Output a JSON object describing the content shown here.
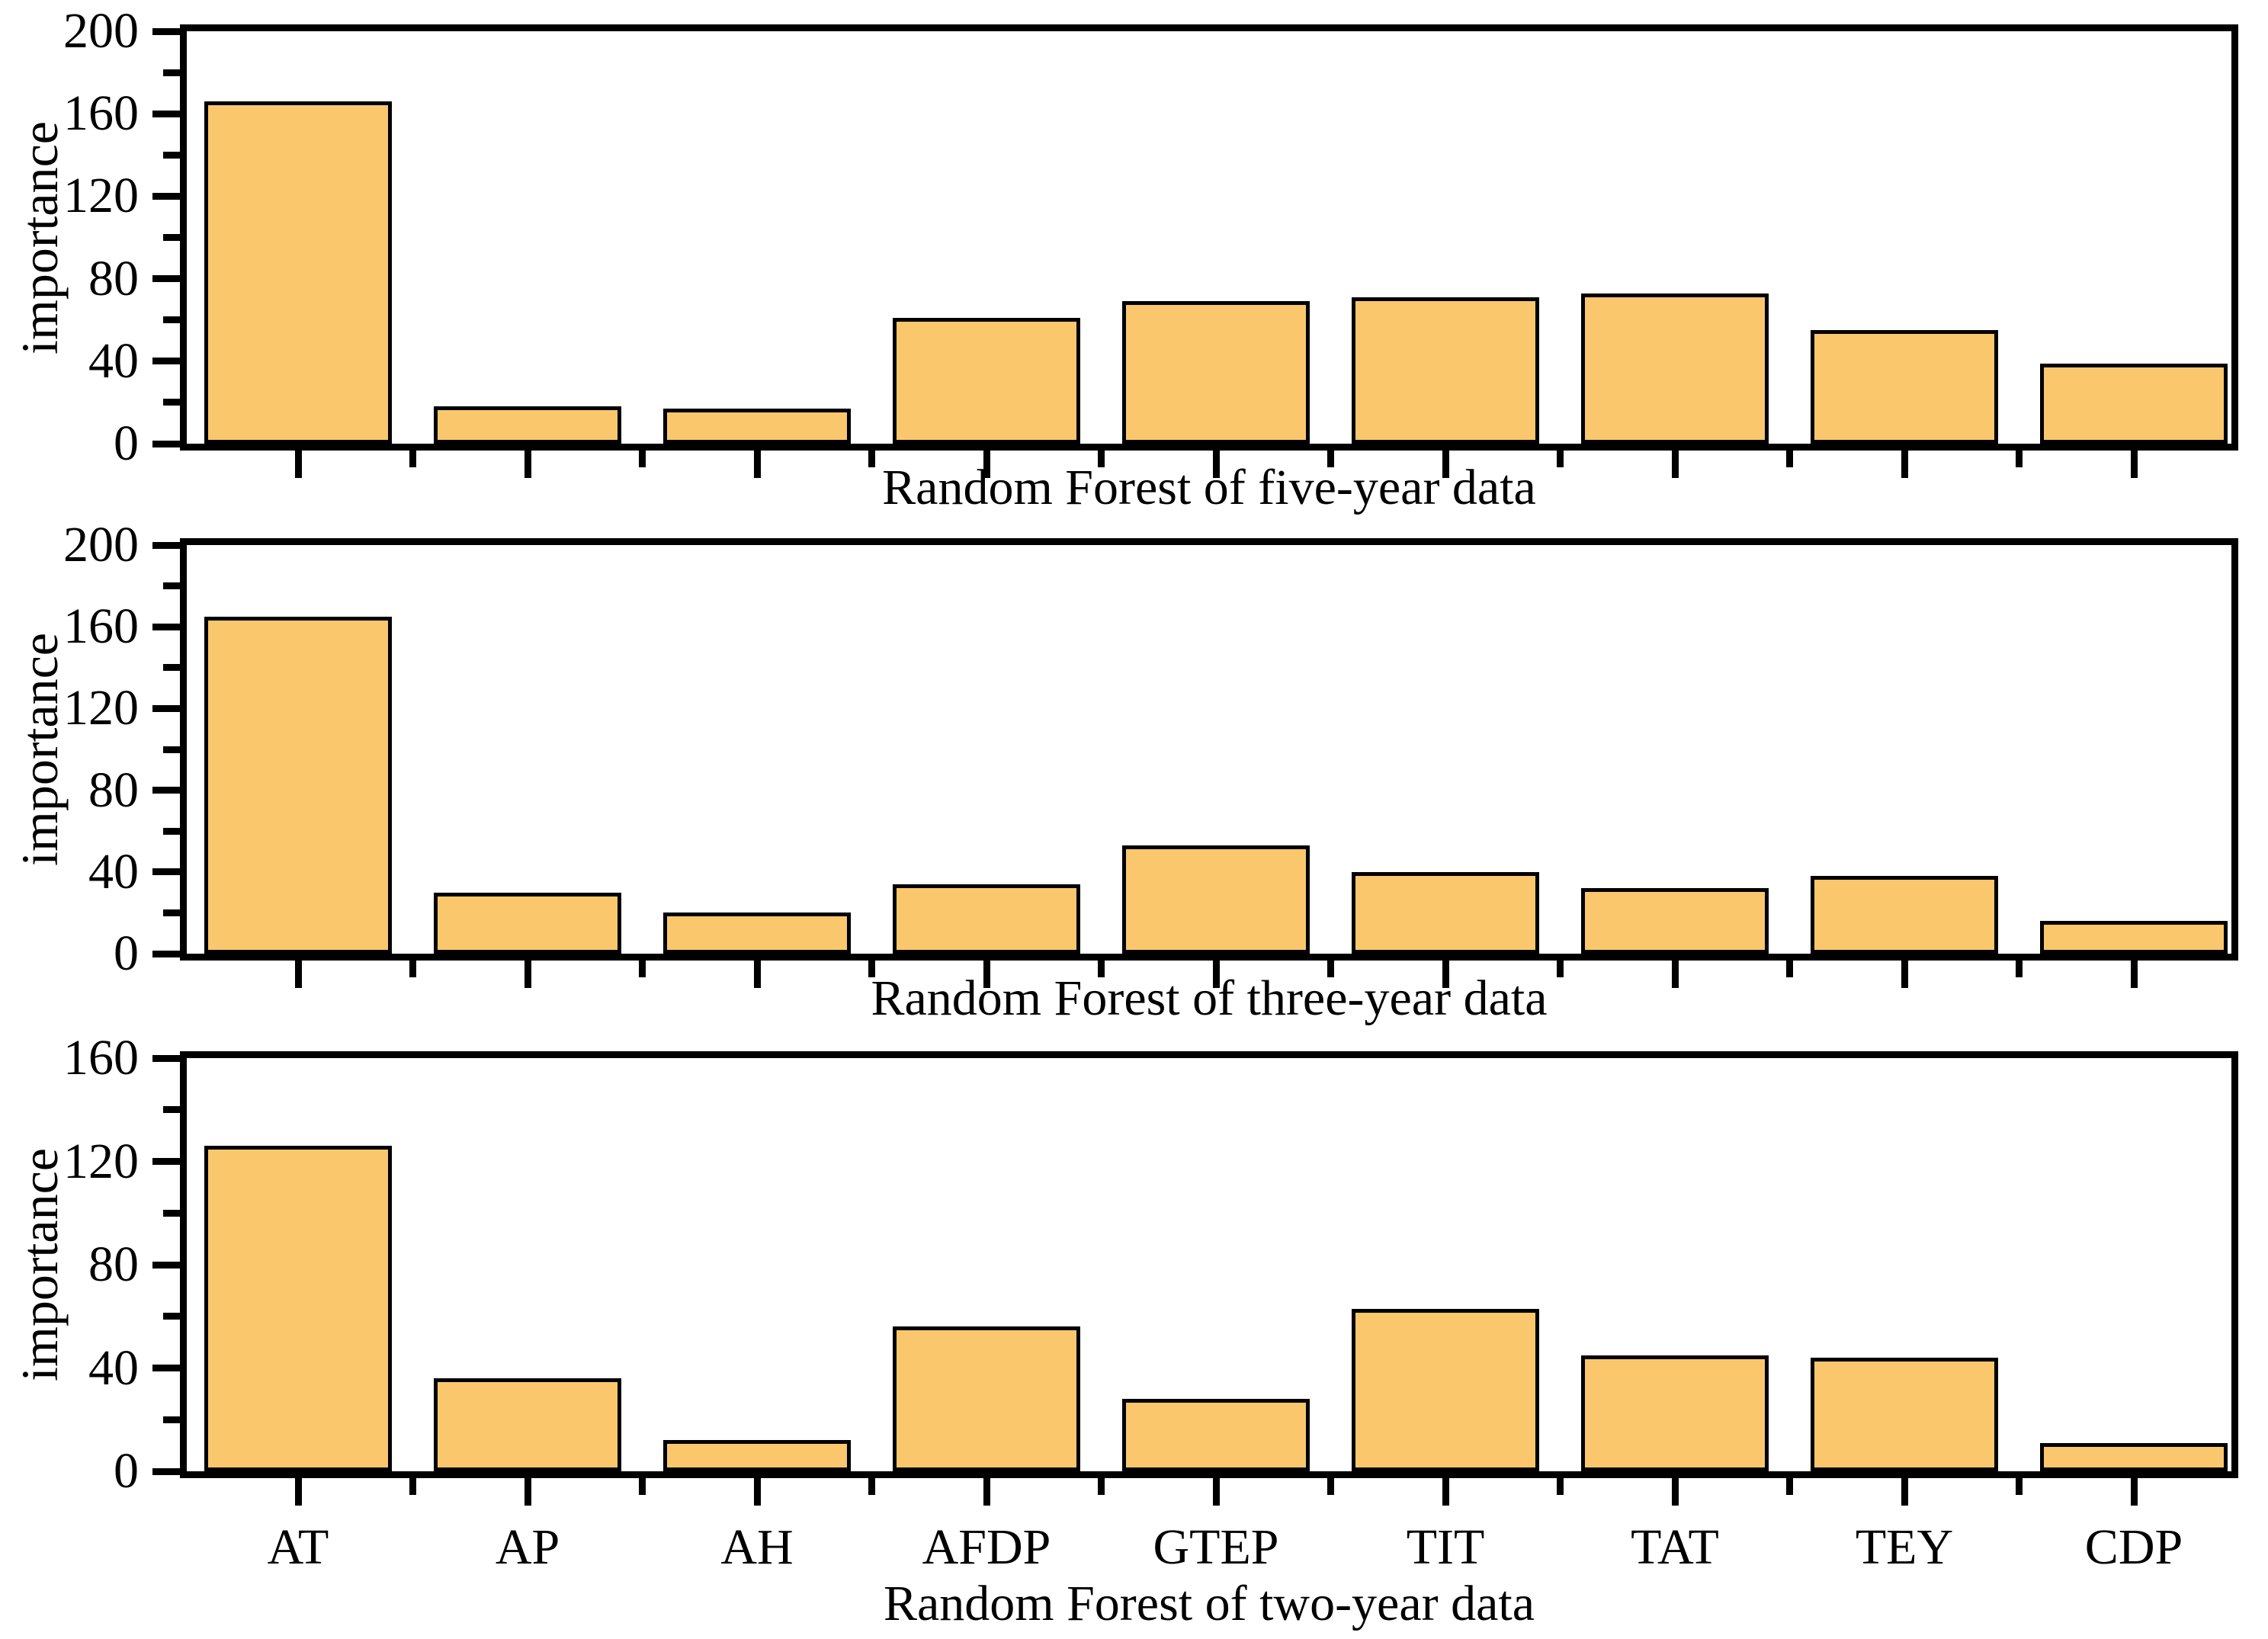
{
  "figure": {
    "background": "#ffffff",
    "bar_fill": "#FAC76D",
    "bar_stroke": "#000000",
    "axis_color": "#000000"
  },
  "chart_data": [
    {
      "type": "bar",
      "title": "",
      "xlabel": "Random Forest of five-year data",
      "ylabel": "importance",
      "categories": [
        "AT",
        "AP",
        "AH",
        "AFDP",
        "GTEP",
        "TIT",
        "TAT",
        "TEY",
        "CDP"
      ],
      "values": [
        166,
        18,
        17,
        61,
        69,
        71,
        73,
        55,
        39
      ],
      "ylim": [
        0,
        200
      ],
      "ytick_major_step": 40,
      "ytick_minor_step": 20,
      "grid": false,
      "legend": "none",
      "category_labels_shown": false
    },
    {
      "type": "bar",
      "title": "",
      "xlabel": "Random Forest of three-year data",
      "ylabel": "importance",
      "categories": [
        "AT",
        "AP",
        "AH",
        "AFDP",
        "GTEP",
        "TIT",
        "TAT",
        "TEY",
        "CDP"
      ],
      "values": [
        165,
        30,
        20,
        34,
        53,
        40,
        32,
        38,
        16
      ],
      "ylim": [
        0,
        200
      ],
      "ytick_major_step": 40,
      "ytick_minor_step": 20,
      "grid": false,
      "legend": "none",
      "category_labels_shown": false
    },
    {
      "type": "bar",
      "title": "",
      "xlabel": "Random Forest of two-year data",
      "ylabel": "importance",
      "categories": [
        "AT",
        "AP",
        "AH",
        "AFDP",
        "GTEP",
        "TIT",
        "TAT",
        "TEY",
        "CDP"
      ],
      "values": [
        126,
        36,
        12,
        56,
        28,
        63,
        45,
        44,
        11
      ],
      "ylim": [
        0,
        160
      ],
      "ytick_major_step": 40,
      "ytick_minor_step": 20,
      "grid": false,
      "legend": "none",
      "category_labels_shown": true
    }
  ]
}
